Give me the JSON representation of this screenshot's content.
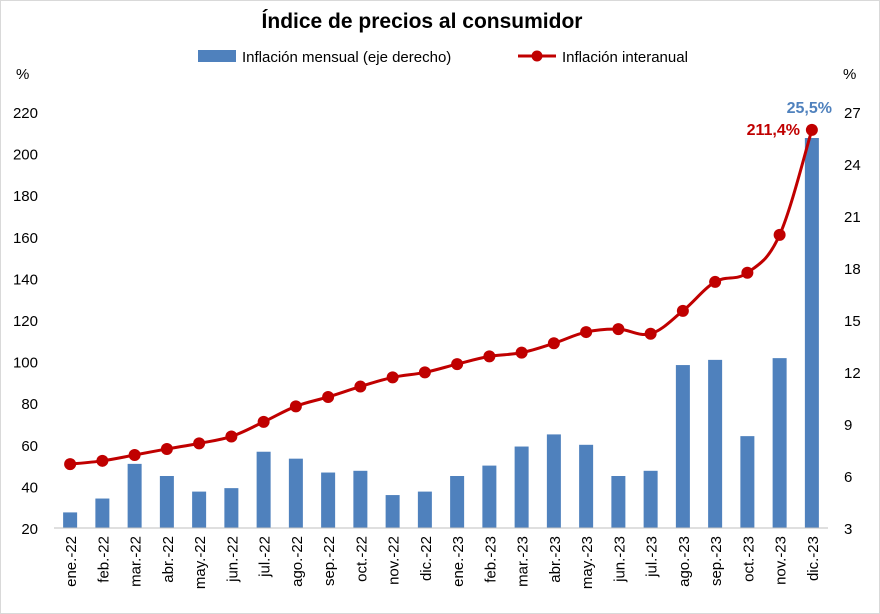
{
  "chart_data": {
    "type": "bar",
    "title": "Índice de precios al consumidor",
    "categories": [
      "ene.-22",
      "feb.-22",
      "mar.-22",
      "abr.-22",
      "may.-22",
      "jun.-22",
      "jul.-22",
      "ago.-22",
      "sep.-22",
      "oct.-22",
      "nov.-22",
      "dic.-22",
      "ene.-23",
      "feb.-23",
      "mar.-23",
      "abr.-23",
      "may.-23",
      "jun.-23",
      "jul.-23",
      "ago.-23",
      "sep.-23",
      "oct.-23",
      "nov.-23",
      "dic.-23"
    ],
    "left_axis": {
      "unit": "%",
      "ylim": [
        20,
        220
      ],
      "ticks": [
        20,
        40,
        60,
        80,
        100,
        120,
        140,
        160,
        180,
        200,
        220
      ]
    },
    "right_axis": {
      "unit": "%",
      "ylim": [
        3,
        27
      ],
      "ticks": [
        3,
        6,
        9,
        12,
        15,
        18,
        21,
        24,
        27
      ]
    },
    "series": [
      {
        "name": "Inflación mensual (eje derecho)",
        "type": "bar",
        "axis": "right",
        "color": "#4f81bd",
        "values": [
          3.9,
          4.7,
          6.7,
          6.0,
          5.1,
          5.3,
          7.4,
          7.0,
          6.2,
          6.3,
          4.9,
          5.1,
          6.0,
          6.6,
          7.7,
          8.4,
          7.8,
          6.0,
          6.3,
          12.4,
          12.7,
          8.3,
          12.8,
          25.5
        ]
      },
      {
        "name": "Inflación interanual",
        "type": "line",
        "axis": "left",
        "color": "#c00000",
        "values": [
          50.7,
          52.3,
          55.1,
          58.0,
          60.7,
          64.0,
          71.0,
          78.5,
          83.0,
          88.0,
          92.4,
          94.8,
          98.8,
          102.5,
          104.3,
          108.8,
          114.2,
          115.6,
          113.4,
          124.4,
          138.3,
          142.7,
          160.9,
          211.4
        ]
      }
    ],
    "annotations": {
      "monthly_last": "25,5%",
      "annual_last": "211,4%"
    },
    "legend_position": "top",
    "grid": false
  }
}
